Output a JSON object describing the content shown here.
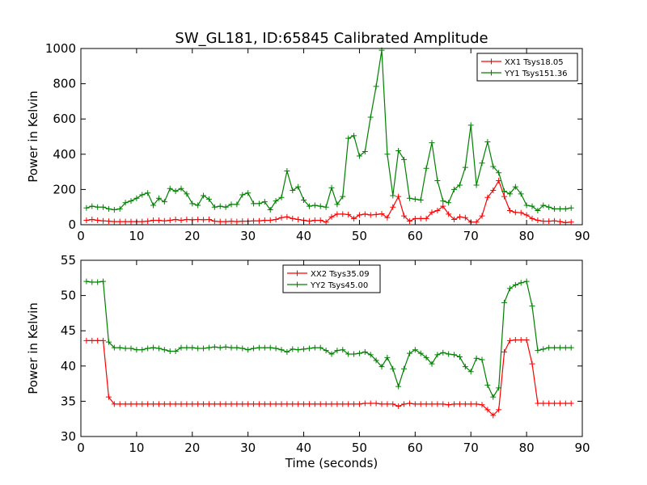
{
  "title": "SW_GL181, ID:65845 Calibrated Amplitude",
  "chart_data": [
    {
      "type": "line",
      "xlabel": "",
      "ylabel": "Power in Kelvin",
      "xlim": [
        0,
        90
      ],
      "ylim": [
        0,
        1000
      ],
      "xticks": [
        0,
        10,
        20,
        30,
        40,
        50,
        60,
        70,
        80,
        90
      ],
      "yticks": [
        0,
        200,
        400,
        600,
        800,
        1000
      ],
      "legend": "top-right",
      "x": [
        1,
        2,
        3,
        4,
        5,
        6,
        7,
        8,
        9,
        10,
        11,
        12,
        13,
        14,
        15,
        16,
        17,
        18,
        19,
        20,
        21,
        22,
        23,
        24,
        25,
        26,
        27,
        28,
        29,
        30,
        31,
        32,
        33,
        34,
        35,
        36,
        37,
        38,
        39,
        40,
        41,
        42,
        43,
        44,
        45,
        46,
        47,
        48,
        49,
        50,
        51,
        52,
        53,
        54,
        55,
        56,
        57,
        58,
        59,
        60,
        61,
        62,
        63,
        64,
        65,
        66,
        67,
        68,
        69,
        70,
        71,
        72,
        73,
        74,
        75,
        76,
        77,
        78,
        79,
        80,
        81,
        82,
        83,
        84,
        85,
        86,
        87,
        88
      ],
      "series": [
        {
          "name": "XX1 Tsys18.05",
          "color": "#ff0000",
          "values": [
            25,
            30,
            25,
            22,
            20,
            18,
            18,
            18,
            18,
            18,
            18,
            20,
            25,
            25,
            22,
            25,
            30,
            25,
            30,
            28,
            30,
            28,
            30,
            20,
            18,
            18,
            20,
            18,
            20,
            20,
            22,
            22,
            25,
            25,
            30,
            40,
            45,
            35,
            30,
            25,
            20,
            25,
            25,
            15,
            45,
            60,
            60,
            58,
            35,
            55,
            60,
            55,
            58,
            62,
            40,
            100,
            160,
            50,
            20,
            35,
            35,
            35,
            70,
            80,
            105,
            60,
            30,
            45,
            40,
            15,
            15,
            50,
            155,
            195,
            250,
            160,
            80,
            70,
            68,
            55,
            35,
            25,
            20,
            20,
            22,
            18,
            12,
            15
          ]
        },
        {
          "name": "YY1 Tsys151.36",
          "color": "#008000",
          "values": [
            95,
            105,
            100,
            100,
            90,
            85,
            90,
            125,
            135,
            150,
            170,
            180,
            110,
            150,
            130,
            205,
            190,
            205,
            175,
            120,
            110,
            165,
            145,
            100,
            105,
            100,
            115,
            115,
            170,
            180,
            120,
            120,
            130,
            85,
            135,
            155,
            305,
            195,
            215,
            140,
            105,
            110,
            105,
            100,
            210,
            115,
            160,
            490,
            505,
            390,
            415,
            610,
            785,
            990,
            400,
            165,
            420,
            370,
            150,
            145,
            140,
            320,
            465,
            250,
            135,
            125,
            200,
            225,
            325,
            565,
            225,
            350,
            470,
            330,
            295,
            190,
            175,
            215,
            175,
            110,
            105,
            80,
            110,
            100,
            90,
            90,
            90,
            95
          ]
        }
      ]
    },
    {
      "type": "line",
      "xlabel": "Time (seconds)",
      "ylabel": "Power in Kelvin",
      "xlim": [
        0,
        90
      ],
      "ylim": [
        30,
        55
      ],
      "xticks": [
        0,
        10,
        20,
        30,
        40,
        50,
        60,
        70,
        80,
        90
      ],
      "yticks": [
        30,
        35,
        40,
        45,
        50,
        55
      ],
      "legend": "top-center",
      "x": [
        1,
        2,
        3,
        4,
        5,
        6,
        7,
        8,
        9,
        10,
        11,
        12,
        13,
        14,
        15,
        16,
        17,
        18,
        19,
        20,
        21,
        22,
        23,
        24,
        25,
        26,
        27,
        28,
        29,
        30,
        31,
        32,
        33,
        34,
        35,
        36,
        37,
        38,
        39,
        40,
        41,
        42,
        43,
        44,
        45,
        46,
        47,
        48,
        49,
        50,
        51,
        52,
        53,
        54,
        55,
        56,
        57,
        58,
        59,
        60,
        61,
        62,
        63,
        64,
        65,
        66,
        67,
        68,
        69,
        70,
        71,
        72,
        73,
        74,
        75,
        76,
        77,
        78,
        79,
        80,
        81,
        82,
        83,
        84,
        85,
        86,
        87,
        88
      ],
      "series": [
        {
          "name": "XX2 Tsys35.09",
          "color": "#ff0000",
          "values": [
            43.6,
            43.6,
            43.6,
            43.6,
            35.6,
            34.6,
            34.6,
            34.6,
            34.6,
            34.6,
            34.6,
            34.6,
            34.6,
            34.6,
            34.6,
            34.6,
            34.6,
            34.6,
            34.6,
            34.6,
            34.6,
            34.6,
            34.6,
            34.6,
            34.6,
            34.6,
            34.6,
            34.6,
            34.6,
            34.6,
            34.6,
            34.6,
            34.6,
            34.6,
            34.6,
            34.6,
            34.6,
            34.6,
            34.6,
            34.6,
            34.6,
            34.6,
            34.6,
            34.6,
            34.6,
            34.6,
            34.6,
            34.6,
            34.6,
            34.6,
            34.7,
            34.7,
            34.7,
            34.6,
            34.6,
            34.6,
            34.3,
            34.6,
            34.7,
            34.6,
            34.6,
            34.6,
            34.6,
            34.6,
            34.6,
            34.5,
            34.6,
            34.6,
            34.6,
            34.6,
            34.6,
            34.5,
            33.8,
            33.0,
            33.8,
            42.0,
            43.6,
            43.7,
            43.7,
            43.7,
            40.3,
            34.7,
            34.7,
            34.7,
            34.7,
            34.7,
            34.7,
            34.7
          ]
        },
        {
          "name": "YY2 Tsys45.00",
          "color": "#008000",
          "values": [
            52.0,
            51.9,
            51.9,
            52.0,
            43.4,
            42.6,
            42.6,
            42.5,
            42.5,
            42.3,
            42.3,
            42.5,
            42.6,
            42.5,
            42.3,
            42.1,
            42.1,
            42.6,
            42.6,
            42.6,
            42.5,
            42.5,
            42.6,
            42.7,
            42.6,
            42.7,
            42.6,
            42.6,
            42.5,
            42.3,
            42.5,
            42.6,
            42.6,
            42.6,
            42.5,
            42.3,
            42.0,
            42.4,
            42.3,
            42.4,
            42.5,
            42.6,
            42.6,
            42.2,
            41.7,
            42.2,
            42.3,
            41.7,
            41.7,
            41.8,
            42.0,
            41.6,
            40.8,
            39.9,
            41.2,
            39.6,
            37.1,
            39.6,
            41.8,
            42.3,
            41.8,
            41.2,
            40.3,
            41.6,
            41.9,
            41.7,
            41.6,
            41.3,
            39.9,
            39.2,
            41.1,
            40.9,
            37.3,
            35.6,
            36.9,
            49.0,
            51.0,
            51.5,
            51.8,
            52.0,
            48.5,
            42.2,
            42.4,
            42.6,
            42.6,
            42.6,
            42.6,
            42.6
          ]
        }
      ]
    }
  ]
}
